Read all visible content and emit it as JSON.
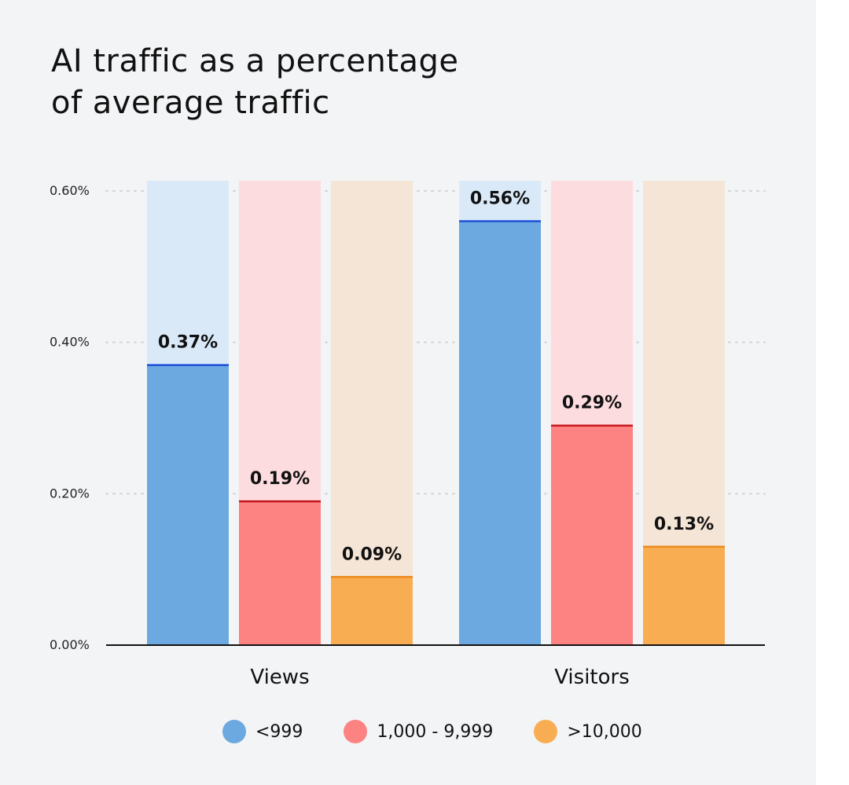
{
  "chart_data": {
    "type": "bar",
    "title": "AI traffic as a percentage\nof average traffic",
    "categories": [
      "Views",
      "Visitors"
    ],
    "series": [
      {
        "name": "<999",
        "values": [
          0.37,
          0.56
        ],
        "labels": [
          "0.37%",
          "0.56%"
        ],
        "color": "#6ca9e0",
        "bg_color": "#d9e9f8",
        "line_color": "#1d4fd8"
      },
      {
        "name": "1,000 - 9,999",
        "values": [
          0.19,
          0.29
        ],
        "labels": [
          "0.19%",
          "0.29%"
        ],
        "color": "#fd8282",
        "bg_color": "#fddcdf",
        "line_color": "#c2141b"
      },
      {
        "name": ">10,000",
        "values": [
          0.09,
          0.13
        ],
        "labels": [
          "0.09%",
          "0.13%"
        ],
        "color": "#f9ad53",
        "bg_color": "#f4e5d6",
        "line_color": "#ec8a1d"
      }
    ],
    "ylim": [
      0,
      0.6
    ],
    "yticks": [
      0,
      0.2,
      0.4,
      0.6
    ],
    "ytick_labels": [
      "0.00%",
      "0.20%",
      "0.40%",
      "0.60%"
    ],
    "grid": "dotted horizontal",
    "legend_position": "bottom"
  },
  "colors": {
    "background": "#f3f4f6",
    "text": "#111111",
    "grid": "#cfd3d8",
    "axis": "#111111"
  }
}
